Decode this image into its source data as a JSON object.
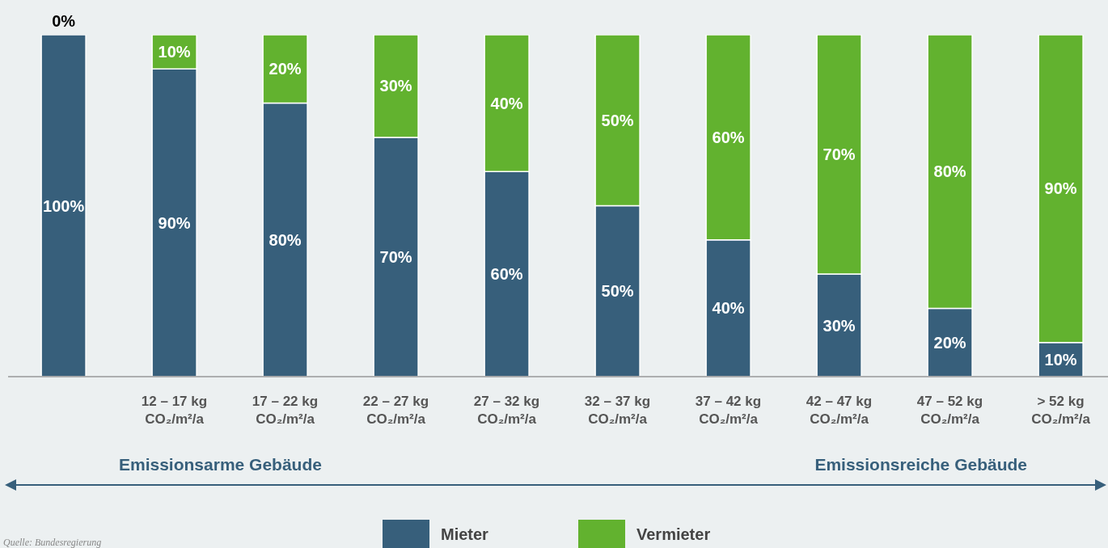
{
  "chart_data": {
    "type": "bar",
    "stacked": true,
    "categories": [
      null,
      "12 – 17 kg\nCO₂/m²/a",
      "17 – 22 kg\nCO₂/m²/a",
      "22 – 27 kg\nCO₂/m²/a",
      "27 – 32 kg\nCO₂/m²/a",
      "32 – 37 kg\nCO₂/m²/a",
      "37 – 42 kg\nCO₂/m²/a",
      "42 – 47 kg\nCO₂/m²/a",
      "47 – 52 kg\nCO₂/m²/a",
      "> 52 kg\nCO₂/m²/a"
    ],
    "series": [
      {
        "name": "Mieter",
        "color": "#375f7b",
        "values": [
          100,
          90,
          80,
          70,
          60,
          50,
          40,
          30,
          20,
          10
        ],
        "value_labels": [
          "100%",
          "90%",
          "80%",
          "70%",
          "60%",
          "50%",
          "40%",
          "30%",
          "20%",
          "10%"
        ]
      },
      {
        "name": "Vermieter",
        "color": "#62b22f",
        "values": [
          0,
          10,
          20,
          30,
          40,
          50,
          60,
          70,
          80,
          90
        ],
        "value_labels": [
          "0%",
          "10%",
          "20%",
          "30%",
          "40%",
          "50%",
          "60%",
          "70%",
          "80%",
          "90%"
        ]
      }
    ],
    "ylim": [
      0,
      100
    ],
    "tick_labels": "x",
    "legend": "bottom",
    "annotations": [
      "Emissionsarme Gebäude",
      "Emissionsreiche Gebäude",
      "Quelle: Bundesregierung"
    ]
  }
}
